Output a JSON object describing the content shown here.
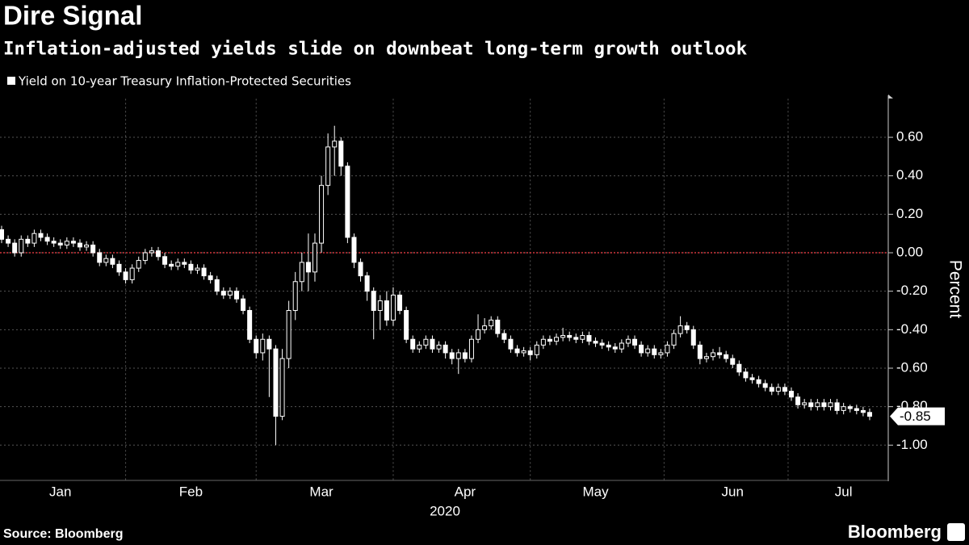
{
  "chart_data": {
    "type": "candlestick",
    "title": "Dire Signal",
    "subtitle": "Inflation-adjusted yields slide on downbeat long-term growth outlook",
    "series_name": "Yield on 10-year Treasury Inflation-Protected Securities",
    "color": "#ffffff",
    "y_axis_label": "Percent",
    "x_axis_year": "2020",
    "source": "Source: Bloomberg",
    "logo": "Bloomberg",
    "reference_line": {
      "value": 0,
      "color": "#d0343a"
    },
    "grid": true,
    "ylim": [
      -1.18,
      0.8
    ],
    "yticks": [
      {
        "value": 0.6,
        "label": "0.60"
      },
      {
        "value": 0.4,
        "label": "0.40"
      },
      {
        "value": 0.2,
        "label": "0.20"
      },
      {
        "value": 0,
        "label": "0.00"
      },
      {
        "value": -0.2,
        "label": "-0.20"
      },
      {
        "value": -0.4,
        "label": "-0.40"
      },
      {
        "value": -0.6,
        "label": "-0.60"
      },
      {
        "value": -0.8,
        "label": "-0.80"
      },
      {
        "value": -1,
        "label": "-1.00"
      }
    ],
    "categories": [
      null,
      null,
      null,
      null,
      null,
      null,
      null,
      null,
      null,
      "Jan",
      null,
      null,
      null,
      null,
      null,
      null,
      null,
      null,
      null,
      null,
      null,
      null,
      null,
      null,
      null,
      null,
      null,
      null,
      null,
      "Feb",
      null,
      null,
      null,
      null,
      null,
      null,
      null,
      null,
      null,
      null,
      null,
      null,
      null,
      null,
      null,
      null,
      null,
      null,
      null,
      "Mar",
      null,
      null,
      null,
      null,
      null,
      null,
      null,
      null,
      null,
      null,
      null,
      null,
      null,
      null,
      null,
      null,
      null,
      null,
      null,
      null,
      null,
      "Apr",
      null,
      null,
      null,
      null,
      null,
      null,
      null,
      null,
      null,
      null,
      null,
      null,
      null,
      null,
      null,
      null,
      null,
      null,
      null,
      "May",
      null,
      null,
      null,
      null,
      null,
      null,
      null,
      null,
      null,
      null,
      null,
      null,
      null,
      null,
      null,
      null,
      null,
      null,
      null,
      null,
      "Jun",
      null,
      null,
      null,
      null,
      null,
      null,
      null,
      null,
      null,
      null,
      null,
      null,
      null,
      null,
      null,
      null,
      "Jul",
      null,
      null,
      null,
      null
    ],
    "open": [
      0.12,
      0.07,
      0.05,
      0.0,
      0.07,
      0.05,
      0.1,
      0.08,
      0.06,
      0.05,
      0.04,
      0.06,
      0.05,
      0.03,
      0.04,
      0.0,
      -0.05,
      -0.03,
      -0.06,
      -0.1,
      -0.14,
      -0.08,
      -0.04,
      0.0,
      0.01,
      -0.02,
      -0.06,
      -0.07,
      -0.05,
      -0.06,
      -0.09,
      -0.08,
      -0.12,
      -0.14,
      -0.2,
      -0.22,
      -0.2,
      -0.24,
      -0.3,
      -0.45,
      -0.52,
      -0.45,
      -0.5,
      -0.85,
      -0.55,
      -0.3,
      -0.15,
      -0.05,
      -0.1,
      0.05,
      0.35,
      0.55,
      0.58,
      0.45,
      0.08,
      -0.05,
      -0.12,
      -0.2,
      -0.3,
      -0.25,
      -0.35,
      -0.22,
      -0.3,
      -0.45,
      -0.5,
      -0.48,
      -0.45,
      -0.5,
      -0.48,
      -0.52,
      -0.55,
      -0.52,
      -0.55,
      -0.45,
      -0.4,
      -0.38,
      -0.35,
      -0.42,
      -0.45,
      -0.5,
      -0.52,
      -0.51,
      -0.53,
      -0.48,
      -0.45,
      -0.46,
      -0.44,
      -0.43,
      -0.44,
      -0.45,
      -0.43,
      -0.46,
      -0.47,
      -0.48,
      -0.49,
      -0.5,
      -0.47,
      -0.45,
      -0.48,
      -0.52,
      -0.5,
      -0.53,
      -0.52,
      -0.48,
      -0.42,
      -0.38,
      -0.4,
      -0.48,
      -0.55,
      -0.54,
      -0.52,
      -0.53,
      -0.55,
      -0.58,
      -0.62,
      -0.65,
      -0.66,
      -0.68,
      -0.7,
      -0.72,
      -0.7,
      -0.72,
      -0.75,
      -0.79,
      -0.78,
      -0.8,
      -0.78,
      -0.8,
      -0.78,
      -0.82,
      -0.8,
      -0.81,
      -0.82,
      -0.83
    ],
    "high": [
      0.14,
      0.09,
      0.07,
      0.09,
      0.09,
      0.12,
      0.12,
      0.1,
      0.08,
      0.07,
      0.08,
      0.08,
      0.07,
      0.06,
      0.06,
      0.02,
      -0.01,
      -0.01,
      -0.04,
      -0.08,
      -0.06,
      -0.02,
      0.02,
      0.03,
      0.03,
      0.0,
      -0.04,
      -0.03,
      -0.03,
      -0.04,
      -0.06,
      -0.06,
      -0.1,
      -0.12,
      -0.18,
      -0.18,
      -0.18,
      -0.22,
      -0.28,
      -0.43,
      -0.42,
      -0.43,
      -0.48,
      -0.5,
      -0.25,
      -0.1,
      0.0,
      0.1,
      0.1,
      0.4,
      0.62,
      0.66,
      0.6,
      0.47,
      0.1,
      -0.03,
      -0.1,
      -0.18,
      -0.22,
      -0.2,
      -0.18,
      -0.2,
      -0.28,
      -0.43,
      -0.46,
      -0.43,
      -0.43,
      -0.46,
      -0.46,
      -0.5,
      -0.5,
      -0.5,
      -0.43,
      -0.32,
      -0.34,
      -0.33,
      -0.33,
      -0.4,
      -0.43,
      -0.48,
      -0.49,
      -0.49,
      -0.46,
      -0.43,
      -0.43,
      -0.42,
      -0.39,
      -0.41,
      -0.42,
      -0.41,
      -0.41,
      -0.44,
      -0.45,
      -0.46,
      -0.47,
      -0.45,
      -0.43,
      -0.43,
      -0.46,
      -0.48,
      -0.48,
      -0.5,
      -0.46,
      -0.4,
      -0.33,
      -0.36,
      -0.38,
      -0.46,
      -0.52,
      -0.5,
      -0.49,
      -0.51,
      -0.53,
      -0.56,
      -0.6,
      -0.63,
      -0.64,
      -0.66,
      -0.68,
      -0.68,
      -0.68,
      -0.7,
      -0.73,
      -0.76,
      -0.76,
      -0.76,
      -0.76,
      -0.76,
      -0.76,
      -0.78,
      -0.79,
      -0.79,
      -0.8,
      -0.81
    ],
    "low": [
      0.05,
      0.03,
      -0.02,
      -0.02,
      0.03,
      0.03,
      0.06,
      0.04,
      0.03,
      0.02,
      0.02,
      0.03,
      0.01,
      0.01,
      -0.02,
      -0.07,
      -0.07,
      -0.08,
      -0.12,
      -0.16,
      -0.16,
      -0.1,
      -0.06,
      -0.02,
      -0.04,
      -0.08,
      -0.09,
      -0.09,
      -0.08,
      -0.11,
      -0.11,
      -0.14,
      -0.16,
      -0.22,
      -0.24,
      -0.24,
      -0.26,
      -0.32,
      -0.47,
      -0.55,
      -0.56,
      -0.75,
      -1.0,
      -0.87,
      -0.6,
      -0.35,
      -0.2,
      -0.2,
      -0.15,
      0.0,
      0.3,
      0.4,
      0.4,
      0.05,
      -0.08,
      -0.15,
      -0.25,
      -0.45,
      -0.4,
      -0.38,
      -0.38,
      -0.32,
      -0.47,
      -0.52,
      -0.52,
      -0.5,
      -0.52,
      -0.52,
      -0.55,
      -0.58,
      -0.63,
      -0.57,
      -0.57,
      -0.47,
      -0.42,
      -0.4,
      -0.44,
      -0.47,
      -0.52,
      -0.54,
      -0.54,
      -0.56,
      -0.55,
      -0.5,
      -0.48,
      -0.48,
      -0.46,
      -0.46,
      -0.47,
      -0.47,
      -0.48,
      -0.49,
      -0.5,
      -0.51,
      -0.52,
      -0.52,
      -0.49,
      -0.5,
      -0.54,
      -0.54,
      -0.55,
      -0.55,
      -0.54,
      -0.5,
      -0.44,
      -0.42,
      -0.5,
      -0.58,
      -0.57,
      -0.56,
      -0.55,
      -0.57,
      -0.6,
      -0.64,
      -0.67,
      -0.68,
      -0.7,
      -0.72,
      -0.74,
      -0.74,
      -0.74,
      -0.77,
      -0.81,
      -0.81,
      -0.82,
      -0.82,
      -0.82,
      -0.82,
      -0.84,
      -0.84,
      -0.83,
      -0.84,
      -0.85,
      -0.87
    ],
    "close": [
      0.07,
      0.05,
      0.0,
      0.07,
      0.05,
      0.1,
      0.08,
      0.06,
      0.05,
      0.04,
      0.06,
      0.05,
      0.03,
      0.04,
      0.0,
      -0.05,
      -0.03,
      -0.06,
      -0.1,
      -0.14,
      -0.08,
      -0.04,
      0.0,
      0.01,
      -0.02,
      -0.06,
      -0.07,
      -0.05,
      -0.06,
      -0.09,
      -0.08,
      -0.12,
      -0.14,
      -0.2,
      -0.22,
      -0.2,
      -0.24,
      -0.3,
      -0.45,
      -0.52,
      -0.45,
      -0.5,
      -0.85,
      -0.55,
      -0.3,
      -0.15,
      -0.05,
      -0.1,
      0.05,
      0.35,
      0.55,
      0.58,
      0.45,
      0.08,
      -0.05,
      -0.12,
      -0.2,
      -0.3,
      -0.25,
      -0.35,
      -0.22,
      -0.3,
      -0.45,
      -0.5,
      -0.48,
      -0.45,
      -0.5,
      -0.48,
      -0.52,
      -0.55,
      -0.52,
      -0.55,
      -0.45,
      -0.4,
      -0.38,
      -0.35,
      -0.42,
      -0.45,
      -0.5,
      -0.52,
      -0.51,
      -0.53,
      -0.48,
      -0.45,
      -0.46,
      -0.44,
      -0.43,
      -0.44,
      -0.45,
      -0.43,
      -0.46,
      -0.47,
      -0.48,
      -0.49,
      -0.5,
      -0.47,
      -0.45,
      -0.48,
      -0.52,
      -0.5,
      -0.53,
      -0.52,
      -0.48,
      -0.42,
      -0.38,
      -0.4,
      -0.48,
      -0.55,
      -0.54,
      -0.52,
      -0.53,
      -0.55,
      -0.58,
      -0.62,
      -0.65,
      -0.66,
      -0.68,
      -0.7,
      -0.72,
      -0.7,
      -0.72,
      -0.75,
      -0.79,
      -0.78,
      -0.8,
      -0.78,
      -0.8,
      -0.78,
      -0.82,
      -0.8,
      -0.81,
      -0.82,
      -0.83,
      -0.85
    ]
  }
}
